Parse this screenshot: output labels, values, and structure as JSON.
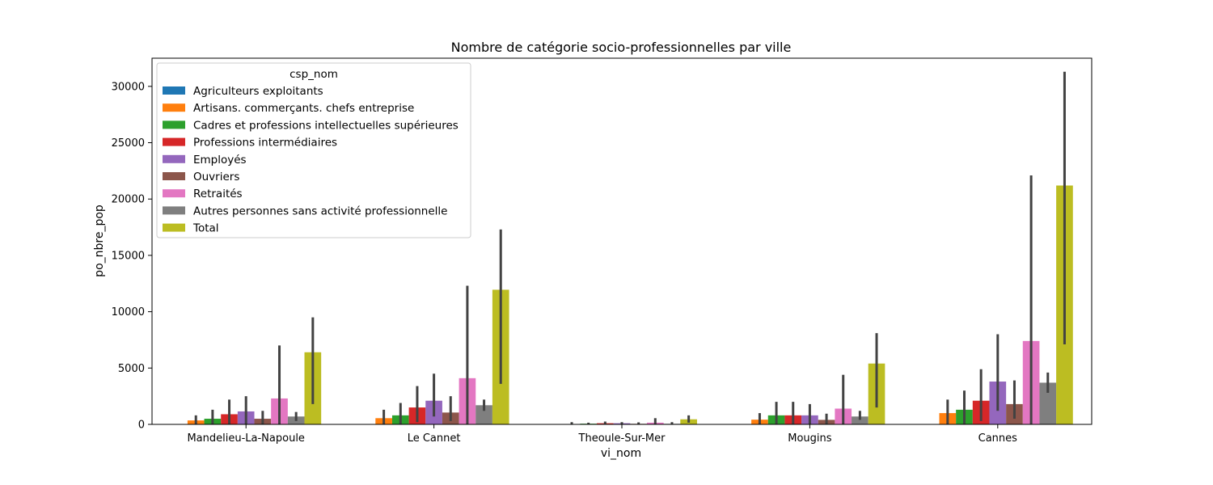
{
  "chart_data": {
    "type": "bar",
    "title": "Nombre de catégorie socio-professionnelles par ville",
    "xlabel": "vi_nom",
    "ylabel": "po_nbre_pop",
    "ylim": [
      0,
      32500
    ],
    "yticks": [
      0,
      5000,
      10000,
      15000,
      20000,
      25000,
      30000
    ],
    "categories": [
      "Mandelieu-La-Napoule",
      "Le Cannet",
      "Theoule-Sur-Mer",
      "Mougins",
      "Cannes"
    ],
    "grid": false,
    "legend": {
      "title": "csp_nom",
      "placement": "top-left"
    },
    "series": [
      {
        "name": "Agriculteurs exploitants",
        "color": "#1f77b4",
        "values": [
          0,
          0,
          0,
          0,
          0
        ],
        "ci_low": [
          0,
          0,
          0,
          0,
          0
        ],
        "ci_high": [
          0,
          0,
          0,
          0,
          0
        ]
      },
      {
        "name": "Artisans. commerçants. chefs entreprise",
        "color": "#ff7f0e",
        "values": [
          350,
          550,
          30,
          420,
          1000
        ],
        "ci_low": [
          0,
          0,
          0,
          0,
          0
        ],
        "ci_high": [
          800,
          1300,
          200,
          1000,
          2200
        ]
      },
      {
        "name": "Cadres et professions intellectuelles supérieures",
        "color": "#2ca02c",
        "values": [
          500,
          800,
          60,
          800,
          1300
        ],
        "ci_low": [
          0,
          0,
          0,
          0,
          0
        ],
        "ci_high": [
          1300,
          1900,
          150,
          2000,
          3000
        ]
      },
      {
        "name": "Professions intermédiaires",
        "color": "#d62728",
        "values": [
          900,
          1500,
          100,
          800,
          2100
        ],
        "ci_low": [
          0,
          200,
          0,
          0,
          300
        ],
        "ci_high": [
          2200,
          3400,
          250,
          2000,
          4900
        ]
      },
      {
        "name": "Employés",
        "color": "#9467bd",
        "values": [
          1150,
          2100,
          100,
          800,
          3800
        ],
        "ci_low": [
          0,
          700,
          0,
          0,
          1200
        ],
        "ci_high": [
          2500,
          4500,
          200,
          1800,
          8000
        ]
      },
      {
        "name": "Ouvriers",
        "color": "#8c564b",
        "values": [
          500,
          1050,
          50,
          400,
          1800
        ],
        "ci_low": [
          0,
          300,
          0,
          0,
          500
        ],
        "ci_high": [
          1200,
          2500,
          180,
          950,
          3900
        ]
      },
      {
        "name": "Retraités",
        "color": "#e377c2",
        "values": [
          2300,
          4100,
          150,
          1400,
          7400
        ],
        "ci_low": [
          0,
          0,
          0,
          0,
          0
        ],
        "ci_high": [
          7000,
          12300,
          550,
          4400,
          22100
        ]
      },
      {
        "name": "Autres personnes sans activité professionnelle",
        "color": "#7f7f7f",
        "values": [
          700,
          1700,
          50,
          700,
          3700
        ],
        "ci_low": [
          300,
          1200,
          0,
          400,
          2800
        ],
        "ci_high": [
          1100,
          2200,
          200,
          1200,
          4600
        ]
      },
      {
        "name": "Total",
        "color": "#bcbd22",
        "values": [
          6400,
          11950,
          450,
          5400,
          21200
        ],
        "ci_low": [
          1800,
          3600,
          150,
          1500,
          7100
        ],
        "ci_high": [
          9500,
          17300,
          800,
          8100,
          31300
        ]
      }
    ]
  }
}
